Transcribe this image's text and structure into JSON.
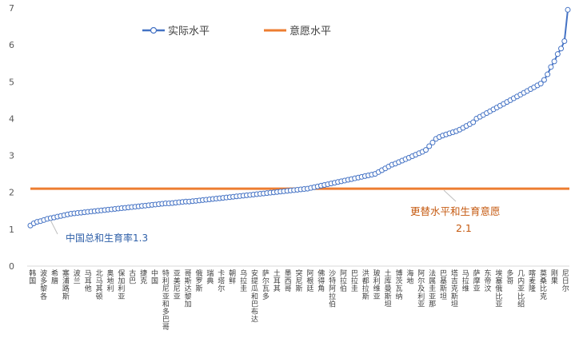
{
  "chart_data": {
    "type": "line",
    "ylim": [
      0,
      7
    ],
    "yticks": [
      "0",
      "1",
      "2",
      "3",
      "4",
      "5",
      "6",
      "7"
    ],
    "grid": false,
    "legend_position": "top-center",
    "x_labels_shown": [
      "韩国",
      "波多黎各",
      "希腊",
      "塞浦路斯",
      "波兰",
      "马耳他",
      "北马其顿",
      "奥地利",
      "保加利亚",
      "古巴",
      "捷克",
      "中国",
      "特利尼亚和多巴哥",
      "亚美尼亚",
      "哥斯达黎加",
      "俄罗斯",
      "瑞典",
      "卡塔尔",
      "朝鲜",
      "乌拉圭",
      "安提瓜和巴布达",
      "萨尔瓦多",
      "土耳其",
      "墨西哥",
      "突尼斯",
      "阿根廷",
      "佛得角",
      "沙特阿拉伯",
      "阿拉伯",
      "巴拉圭",
      "洪都拉斯",
      "玻利维亚",
      "土库曼斯坦",
      "博茨瓦纳",
      "海地",
      "阿尔及利亚",
      "法属圭亚那",
      "巴基斯坦",
      "塔吉克斯坦",
      "马拉维",
      "萨摩亚",
      "东帝汶",
      "埃塞俄比亚",
      "多哥",
      "几内亚比绍",
      "喀麦隆",
      "莫桑比克",
      "刚果",
      "尼日尔"
    ],
    "series": [
      {
        "name": "实际水平",
        "color": "#4472c4",
        "values": [
          1.1,
          1.16,
          1.2,
          1.22,
          1.25,
          1.28,
          1.3,
          1.32,
          1.34,
          1.36,
          1.38,
          1.4,
          1.42,
          1.43,
          1.44,
          1.45,
          1.46,
          1.47,
          1.48,
          1.49,
          1.5,
          1.51,
          1.52,
          1.53,
          1.54,
          1.55,
          1.56,
          1.57,
          1.58,
          1.59,
          1.6,
          1.61,
          1.62,
          1.63,
          1.64,
          1.65,
          1.66,
          1.67,
          1.68,
          1.69,
          1.7,
          1.7,
          1.71,
          1.72,
          1.73,
          1.74,
          1.75,
          1.75,
          1.76,
          1.77,
          1.78,
          1.79,
          1.8,
          1.81,
          1.82,
          1.83,
          1.84,
          1.85,
          1.86,
          1.87,
          1.88,
          1.89,
          1.9,
          1.91,
          1.92,
          1.93,
          1.94,
          1.95,
          1.96,
          1.97,
          1.98,
          1.99,
          2.0,
          2.01,
          2.02,
          2.03,
          2.04,
          2.05,
          2.06,
          2.07,
          2.08,
          2.09,
          2.1,
          2.12,
          2.14,
          2.16,
          2.18,
          2.2,
          2.22,
          2.24,
          2.26,
          2.28,
          2.3,
          2.32,
          2.34,
          2.36,
          2.38,
          2.4,
          2.42,
          2.44,
          2.46,
          2.48,
          2.5,
          2.55,
          2.6,
          2.65,
          2.7,
          2.75,
          2.78,
          2.82,
          2.86,
          2.9,
          2.94,
          2.98,
          3.02,
          3.06,
          3.1,
          3.15,
          3.25,
          3.35,
          3.45,
          3.5,
          3.54,
          3.57,
          3.6,
          3.63,
          3.66,
          3.7,
          3.75,
          3.8,
          3.85,
          3.9,
          4.0,
          4.05,
          4.1,
          4.15,
          4.2,
          4.25,
          4.3,
          4.35,
          4.4,
          4.45,
          4.5,
          4.55,
          4.6,
          4.65,
          4.7,
          4.75,
          4.8,
          4.85,
          4.9,
          4.95,
          5.05,
          5.2,
          5.4,
          5.55,
          5.75,
          5.9,
          6.1,
          6.95
        ]
      },
      {
        "name": "意愿水平",
        "color": "#ed7d31",
        "values": [
          2.1
        ]
      }
    ],
    "annotations": [
      {
        "text": "中国总和生育率1.3",
        "value": 1.3,
        "color": "#2e5fa8"
      },
      {
        "text_line1": "更替水平和生育意愿",
        "text_line2": "2.1",
        "value": 2.1,
        "color": "#c55a11"
      }
    ]
  }
}
